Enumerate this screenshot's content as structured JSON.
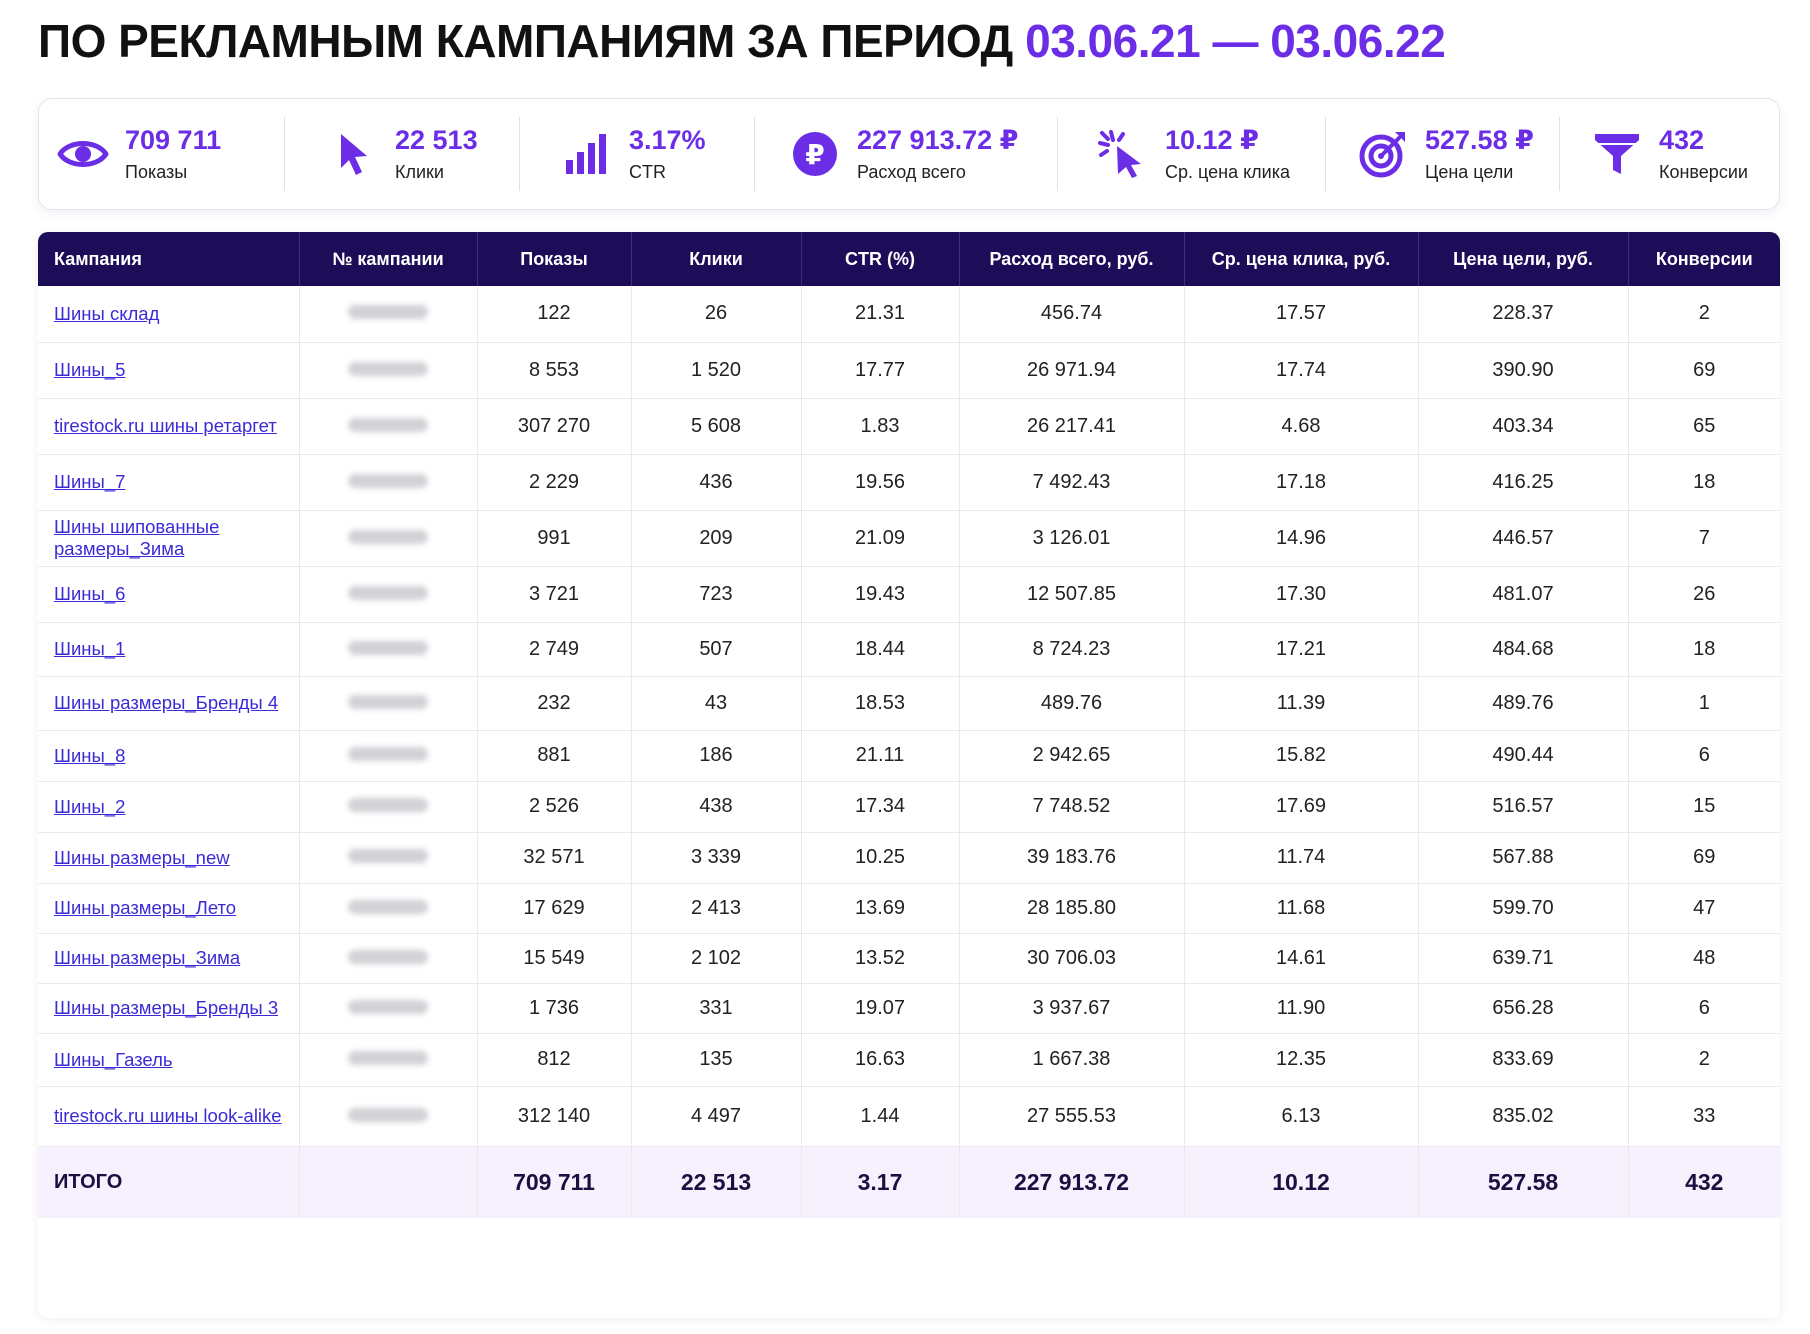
{
  "title": {
    "main": "ПО РЕКЛАМНЫМ КАМПАНИЯМ ЗА ПЕРИОД",
    "period": "03.06.21 — 03.06.22"
  },
  "kpis": [
    {
      "icon": "eye-icon",
      "value": "709 711",
      "label": "Показы"
    },
    {
      "icon": "cursor-icon",
      "value": "22 513",
      "label": "Клики"
    },
    {
      "icon": "bar-chart-icon",
      "value": "3.17%",
      "label": "CTR"
    },
    {
      "icon": "ruble-coin-icon",
      "value": "227 913.72 ₽",
      "label": "Расход всего"
    },
    {
      "icon": "click-icon",
      "value": "10.12 ₽",
      "label": "Ср. цена клика"
    },
    {
      "icon": "target-icon",
      "value": "527.58 ₽",
      "label": "Цена цели"
    },
    {
      "icon": "funnel-icon",
      "value": "432",
      "label": "Конверсии"
    }
  ],
  "table": {
    "headers": [
      "Кампания",
      "№ кампании",
      "Показы",
      "Клики",
      "CTR (%)",
      "Расход всего, руб.",
      "Ср. цена клика, руб.",
      "Цена цели, руб.",
      "Конверсии"
    ],
    "rows": [
      {
        "name": "Шины склад",
        "shows": "122",
        "clicks": "26",
        "ctr": "21.31",
        "spend": "456.74",
        "cpc": "17.57",
        "cpa": "228.37",
        "conv": "2"
      },
      {
        "name": "Шины_5",
        "shows": "8 553",
        "clicks": "1 520",
        "ctr": "17.77",
        "spend": "26 971.94",
        "cpc": "17.74",
        "cpa": "390.90",
        "conv": "69"
      },
      {
        "name": "tirestock.ru шины ретаргет",
        "shows": "307 270",
        "clicks": "5 608",
        "ctr": "1.83",
        "spend": "26 217.41",
        "cpc": "4.68",
        "cpa": "403.34",
        "conv": "65"
      },
      {
        "name": "Шины_7",
        "shows": "2 229",
        "clicks": "436",
        "ctr": "19.56",
        "spend": "7 492.43",
        "cpc": "17.18",
        "cpa": "416.25",
        "conv": "18"
      },
      {
        "name": "Шины шипованные размеры_Зима",
        "shows": "991",
        "clicks": "209",
        "ctr": "21.09",
        "spend": "3 126.01",
        "cpc": "14.96",
        "cpa": "446.57",
        "conv": "7"
      },
      {
        "name": "Шины_6",
        "shows": "3 721",
        "clicks": "723",
        "ctr": "19.43",
        "spend": "12 507.85",
        "cpc": "17.30",
        "cpa": "481.07",
        "conv": "26"
      },
      {
        "name": "Шины_1",
        "shows": "2 749",
        "clicks": "507",
        "ctr": "18.44",
        "spend": "8 724.23",
        "cpc": "17.21",
        "cpa": "484.68",
        "conv": "18"
      },
      {
        "name": "Шины размеры_Бренды 4",
        "shows": "232",
        "clicks": "43",
        "ctr": "18.53",
        "spend": "489.76",
        "cpc": "11.39",
        "cpa": "489.76",
        "conv": "1"
      },
      {
        "name": "Шины_8",
        "shows": "881",
        "clicks": "186",
        "ctr": "21.11",
        "spend": "2 942.65",
        "cpc": "15.82",
        "cpa": "490.44",
        "conv": "6"
      },
      {
        "name": "Шины_2",
        "shows": "2 526",
        "clicks": "438",
        "ctr": "17.34",
        "spend": "7 748.52",
        "cpc": "17.69",
        "cpa": "516.57",
        "conv": "15"
      },
      {
        "name": "Шины размеры_new",
        "shows": "32 571",
        "clicks": "3 339",
        "ctr": "10.25",
        "spend": "39 183.76",
        "cpc": "11.74",
        "cpa": "567.88",
        "conv": "69"
      },
      {
        "name": "Шины размеры_Лето",
        "shows": "17 629",
        "clicks": "2 413",
        "ctr": "13.69",
        "spend": "28 185.80",
        "cpc": "11.68",
        "cpa": "599.70",
        "conv": "47"
      },
      {
        "name": "Шины размеры_Зима",
        "shows": "15 549",
        "clicks": "2 102",
        "ctr": "13.52",
        "spend": "30 706.03",
        "cpc": "14.61",
        "cpa": "639.71",
        "conv": "48"
      },
      {
        "name": "Шины размеры_Бренды 3",
        "shows": "1 736",
        "clicks": "331",
        "ctr": "19.07",
        "spend": "3 937.67",
        "cpc": "11.90",
        "cpa": "656.28",
        "conv": "6"
      },
      {
        "name": "Шины_Газель",
        "shows": "812",
        "clicks": "135",
        "ctr": "16.63",
        "spend": "1 667.38",
        "cpc": "12.35",
        "cpa": "833.69",
        "conv": "2"
      },
      {
        "name": "tirestock.ru шины look-alike",
        "shows": "312 140",
        "clicks": "4 497",
        "ctr": "1.44",
        "spend": "27 555.53",
        "cpc": "6.13",
        "cpa": "835.02",
        "conv": "33"
      }
    ],
    "total": {
      "label": "ИТОГО",
      "shows": "709 711",
      "clicks": "22 513",
      "ctr": "3.17",
      "spend": "227 913.72",
      "cpc": "10.12",
      "cpa": "527.58",
      "conv": "432"
    }
  },
  "colors": {
    "accent": "#6b2ee6",
    "header_bg": "#1d0c57",
    "link": "#3b2bd6",
    "total_bg": "#f6f1fd"
  }
}
